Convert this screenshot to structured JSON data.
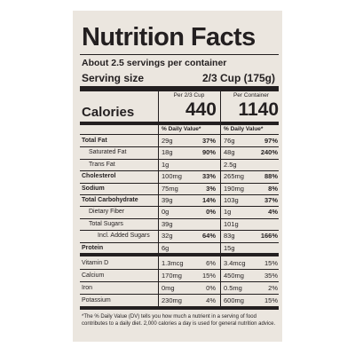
{
  "header": {
    "title": "Nutrition Facts",
    "servings": "About 2.5 servings per container",
    "serving_size_label": "Serving size",
    "serving_size": "2/3 Cup (175g)"
  },
  "columns": [
    {
      "heading": "Per 2/3 Cup",
      "calories": "440",
      "daily_value_label": "% Daily Value*"
    },
    {
      "heading": "Per Container",
      "calories": "1140",
      "daily_value_label": "% Daily Value*"
    }
  ],
  "calories_label": "Calories",
  "rows": [
    {
      "name": "Total Fat",
      "amounts": [
        "29g",
        "76g"
      ],
      "dv": [
        "37%",
        "97%"
      ]
    },
    {
      "name": "Saturated Fat",
      "amounts": [
        "18g",
        "48g"
      ],
      "dv": [
        "90%",
        "240%"
      ]
    },
    {
      "name": "Trans Fat",
      "amounts": [
        "1g",
        "2.5g"
      ]
    },
    {
      "name": "Cholesterol",
      "amounts": [
        "100mg",
        "265mg"
      ],
      "dv": [
        "33%",
        "88%"
      ]
    },
    {
      "name": "Sodium",
      "amounts": [
        "75mg",
        "190mg"
      ],
      "dv": [
        "3%",
        "8%"
      ]
    },
    {
      "name": "Total Carbohydrate",
      "amounts": [
        "39g",
        "103g"
      ],
      "dv": [
        "14%",
        "37%"
      ]
    },
    {
      "name": "Dietary Fiber",
      "amounts": [
        "0g",
        "1g"
      ],
      "dv": [
        "0%",
        "4%"
      ]
    },
    {
      "name": "Total Sugars",
      "amounts": [
        "39g",
        "101g"
      ]
    },
    {
      "name": "Incl. Added Sugars",
      "amounts": [
        "32g",
        "83g"
      ],
      "dv": [
        "64%",
        "166%"
      ]
    },
    {
      "name": "Protein",
      "amounts": [
        "6g",
        "15g"
      ]
    }
  ],
  "vitamins": [
    {
      "name": "Vitamin D",
      "amounts": [
        "1.3mcg",
        "3.4mcg"
      ],
      "dv": [
        "6%",
        "15%"
      ]
    },
    {
      "name": "Calcium",
      "amounts": [
        "170mg",
        "450mg"
      ],
      "dv": [
        "15%",
        "35%"
      ]
    },
    {
      "name": "Iron",
      "amounts": [
        "0mg",
        "0.5mg"
      ],
      "dv": [
        "0%",
        "2%"
      ]
    },
    {
      "name": "Potassium",
      "amounts": [
        "230mg",
        "600mg"
      ],
      "dv": [
        "4%",
        "15%"
      ]
    }
  ],
  "footnote": "*The % Daily Value (DV) tells you how much a nutrient in a serving of food contributes to a daily diet. 2,000 calories a day is used for general nutrition advice."
}
